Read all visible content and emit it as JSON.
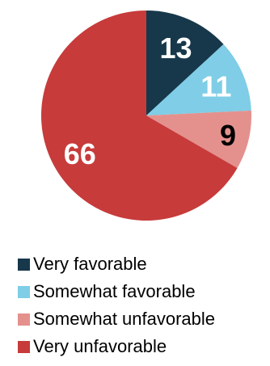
{
  "chart_data": {
    "type": "pie",
    "slices": [
      {
        "label": "Very favorable",
        "value": 13,
        "color": "#16384a",
        "value_text_color": "#ffffff"
      },
      {
        "label": "Somewhat favorable",
        "value": 11,
        "color": "#7fcde6",
        "value_text_color": "#ffffff"
      },
      {
        "label": "Somewhat unfavorable",
        "value": 9,
        "color": "#e4918d",
        "value_text_color": "#000000"
      },
      {
        "label": "Very unfavorable",
        "value": 66,
        "color": "#c73b3b",
        "value_text_color": "#ffffff"
      }
    ],
    "start_angle_deg": 0,
    "direction": "clockwise",
    "legend_placement": "bottom-left"
  }
}
